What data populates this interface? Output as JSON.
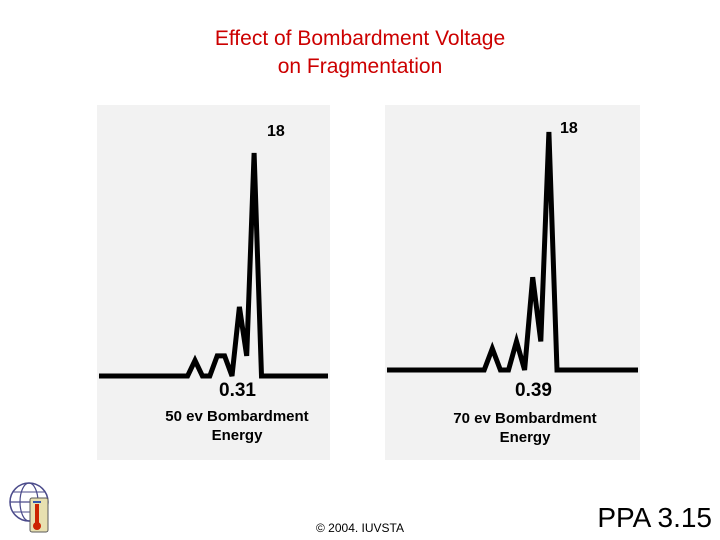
{
  "title_line1": "Effect of Bombardment Voltage",
  "title_line2": "on Fragmentation",
  "chart_data": [
    {
      "type": "line",
      "title": "50 ev Bombardment Energy",
      "caption_line1": "50 ev Bombardment",
      "caption_line2": "Energy",
      "peak_label": "18",
      "ratio_label": "0.31",
      "x": [
        0,
        1,
        2,
        3,
        4,
        5,
        6,
        7,
        8,
        9,
        10,
        11,
        12,
        13,
        14,
        15,
        16,
        17,
        18,
        19,
        20,
        21,
        22,
        23,
        24,
        25,
        26,
        27,
        28,
        29,
        30,
        31
      ],
      "values": [
        0,
        0,
        0,
        0,
        0,
        0,
        0,
        0,
        0,
        0,
        0,
        0,
        0,
        7,
        0,
        0,
        9,
        9,
        0,
        31,
        9,
        100,
        0,
        0,
        0,
        0,
        0,
        0,
        0,
        0,
        0,
        0
      ],
      "ylim": [
        0,
        100
      ]
    },
    {
      "type": "line",
      "title": "70 ev Bombardment Energy",
      "caption_line1": "70 ev Bombardment",
      "caption_line2": "Energy",
      "peak_label": "18",
      "ratio_label": "0.39",
      "x": [
        0,
        1,
        2,
        3,
        4,
        5,
        6,
        7,
        8,
        9,
        10,
        11,
        12,
        13,
        14,
        15,
        16,
        17,
        18,
        19,
        20,
        21,
        22,
        23,
        24,
        25,
        26,
        27,
        28,
        29,
        30,
        31
      ],
      "values": [
        0,
        0,
        0,
        0,
        0,
        0,
        0,
        0,
        0,
        0,
        0,
        0,
        0,
        9,
        0,
        0,
        12,
        0,
        39,
        12,
        100,
        0,
        0,
        0,
        0,
        0,
        0,
        0,
        0,
        0,
        0,
        0
      ],
      "ylim": [
        0,
        100
      ]
    }
  ],
  "copyright": "© 2004. IUVSTA",
  "slide_number": "PPA 3.15",
  "colors": {
    "title": "#cc0000",
    "trace": "#000000",
    "panel": "#f2f2f2"
  }
}
